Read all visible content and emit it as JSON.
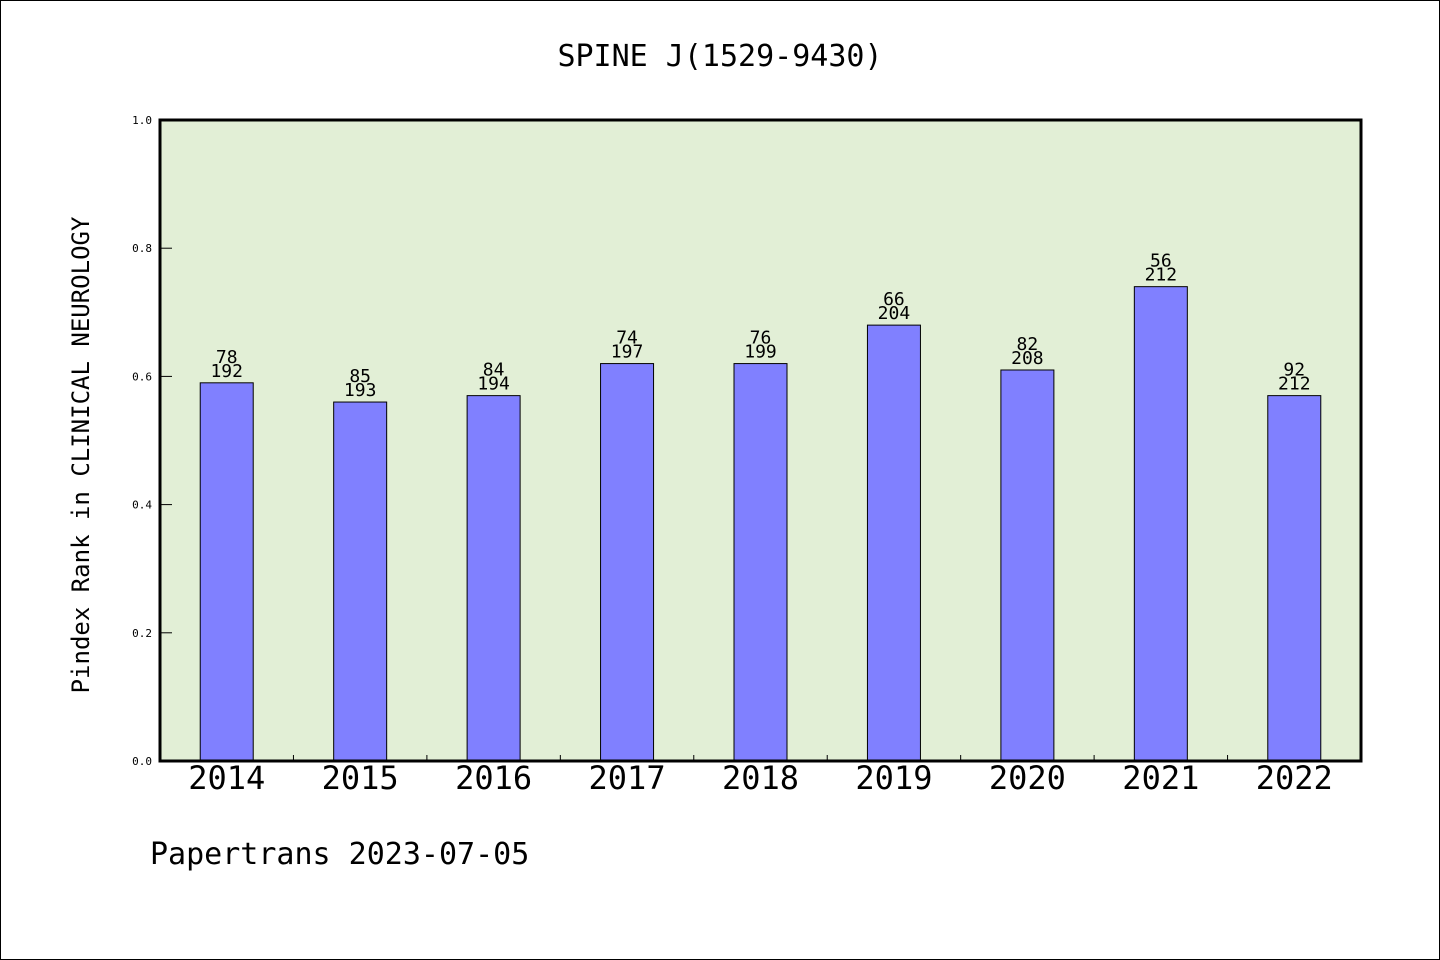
{
  "footer": "Papertrans 2023-07-05",
  "chart_data": {
    "type": "bar",
    "title": "SPINE J(1529-9430)",
    "xlabel": "",
    "ylabel": "Pindex Rank in CLINICAL NEUROLOGY",
    "ylim": [
      0,
      1.0
    ],
    "yticks": [
      "0.0",
      "0.2",
      "0.4",
      "0.6",
      "0.8",
      "1.0"
    ],
    "categories": [
      "2014",
      "2015",
      "2016",
      "2017",
      "2018",
      "2019",
      "2020",
      "2021",
      "2022"
    ],
    "values": [
      0.59,
      0.56,
      0.57,
      0.62,
      0.62,
      0.68,
      0.61,
      0.74,
      0.57
    ],
    "rank_labels": [
      "78",
      "85",
      "84",
      "74",
      "76",
      "66",
      "82",
      "56",
      "92"
    ],
    "total_labels": [
      "192",
      "193",
      "194",
      "197",
      "199",
      "204",
      "208",
      "212",
      "212"
    ],
    "grid": false,
    "legend": "none",
    "colors": {
      "plot_background": "#e2efd6",
      "bar_fill": "#8080ff",
      "bar_stroke": "#000000"
    }
  }
}
